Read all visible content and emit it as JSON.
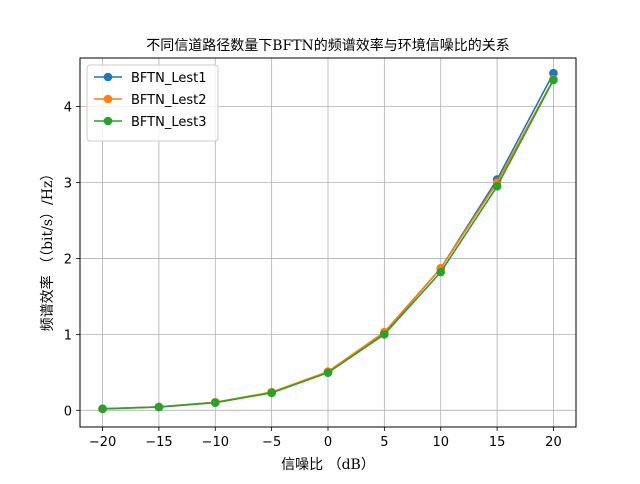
{
  "chart_data": {
    "type": "line",
    "title": "不同信道路径数量下BFTN的频谱效率与环境信噪比的关系",
    "xlabel": "信噪比 （dB）",
    "ylabel": "频谱效率 （（bit/s）/Hz）",
    "x": [
      -20,
      -15,
      -10,
      -5,
      0,
      5,
      10,
      15,
      20
    ],
    "xlim": [
      -22,
      22
    ],
    "ylim": [
      -0.22,
      4.64
    ],
    "xticks": [
      -20,
      -15,
      -10,
      -5,
      0,
      5,
      10,
      15,
      20
    ],
    "xtick_labels": [
      "−20",
      "−15",
      "−10",
      "−5",
      "0",
      "5",
      "10",
      "15",
      "20"
    ],
    "yticks": [
      0,
      1,
      2,
      3,
      4
    ],
    "ytick_labels": [
      "0",
      "1",
      "2",
      "3",
      "4"
    ],
    "grid": true,
    "legend_position": "top-left",
    "series": [
      {
        "name": "BFTN_Lest1",
        "color": "#1f77b4",
        "values": [
          0.02,
          0.045,
          0.105,
          0.235,
          0.505,
          1.02,
          1.87,
          3.04,
          4.44
        ]
      },
      {
        "name": "BFTN_Lest2",
        "color": "#ff7f0e",
        "values": [
          0.02,
          0.045,
          0.105,
          0.24,
          0.51,
          1.03,
          1.87,
          3.0,
          4.36
        ]
      },
      {
        "name": "BFTN_Lest3",
        "color": "#2ca02c",
        "values": [
          0.02,
          0.042,
          0.1,
          0.23,
          0.495,
          1.0,
          1.82,
          2.95,
          4.35
        ]
      }
    ]
  }
}
